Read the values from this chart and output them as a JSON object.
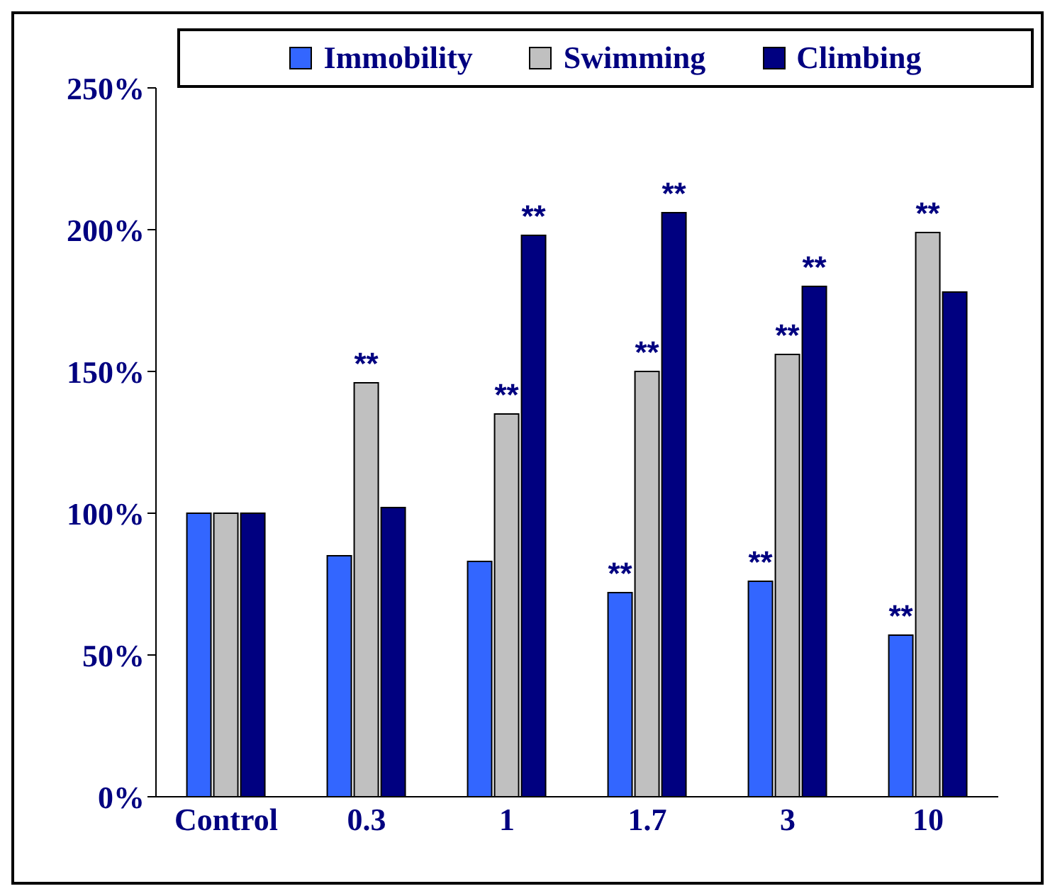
{
  "chart_data": {
    "type": "bar",
    "categories": [
      "Control",
      "0.3",
      "1",
      "1.7",
      "3",
      "10"
    ],
    "series": [
      {
        "name": "Immobility",
        "color": "#3366ff",
        "values": [
          100,
          85,
          83,
          72,
          76,
          57
        ],
        "value_labels": [
          null,
          null,
          null,
          "**",
          "**",
          "**"
        ]
      },
      {
        "name": "Swimming",
        "color": "#c0c0c0",
        "values": [
          100,
          146,
          135,
          150,
          156,
          199
        ],
        "value_labels": [
          null,
          "**",
          "**",
          "**",
          "**",
          "**"
        ]
      },
      {
        "name": "Climbing",
        "color": "#000080",
        "values": [
          100,
          102,
          198,
          206,
          180,
          178
        ],
        "value_labels": [
          null,
          null,
          "**",
          "**",
          "**",
          null
        ]
      }
    ],
    "ylim": [
      0,
      250
    ],
    "yticks": [
      {
        "value": 0,
        "label": "0%"
      },
      {
        "value": 50,
        "label": "50%"
      },
      {
        "value": 100,
        "label": "100%"
      },
      {
        "value": 150,
        "label": "150%"
      },
      {
        "value": 200,
        "label": "200%"
      },
      {
        "value": 250,
        "label": "250%"
      }
    ],
    "grid": false,
    "legend": "top"
  }
}
